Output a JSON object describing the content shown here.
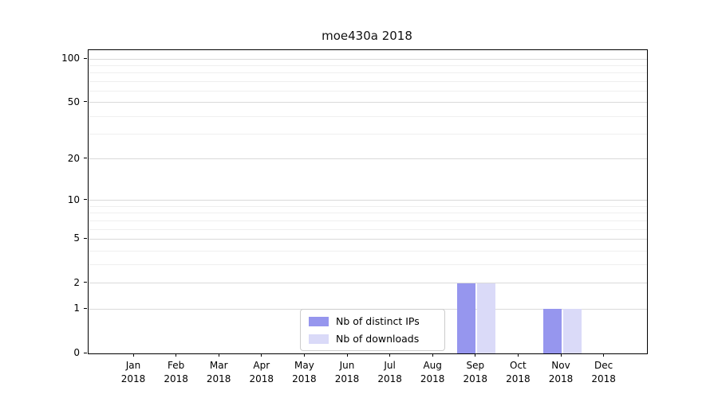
{
  "title": "moe430a 2018",
  "chart_data": {
    "type": "bar",
    "title": "moe430a 2018",
    "categories": [
      "Jan 2018",
      "Feb 2018",
      "Mar 2018",
      "Apr 2018",
      "May 2018",
      "Jun 2018",
      "Jul 2018",
      "Aug 2018",
      "Sep 2018",
      "Oct 2018",
      "Nov 2018",
      "Dec 2018"
    ],
    "series": [
      {
        "name": "Nb of distinct IPs",
        "color": "#9696ee",
        "values": [
          0,
          0,
          0,
          0,
          0,
          0,
          0,
          0,
          2,
          0,
          1,
          0
        ]
      },
      {
        "name": "Nb of downloads",
        "color": "#dadaf8",
        "values": [
          0,
          0,
          0,
          0,
          0,
          0,
          0,
          0,
          2,
          0,
          1,
          0
        ]
      }
    ],
    "xlabel": "",
    "ylabel": "",
    "yscale": "log1p",
    "ylim": [
      0,
      115
    ],
    "yticks": [
      0,
      1,
      2,
      5,
      10,
      20,
      50,
      100
    ],
    "yticks_minor": [
      3,
      4,
      6,
      7,
      8,
      9,
      30,
      40,
      60,
      70,
      80,
      90
    ],
    "grid": "horizontal",
    "legend_position": "lower center"
  }
}
